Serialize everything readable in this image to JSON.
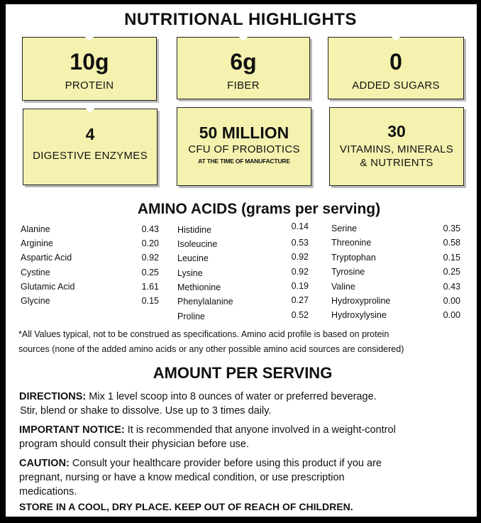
{
  "title": "NUTRITIONAL HIGHLIGHTS",
  "highlights": [
    {
      "value": "10g",
      "label": "PROTEIN"
    },
    {
      "value": "6g",
      "label": "FIBER"
    },
    {
      "value": "0",
      "label": "ADDED SUGARS"
    },
    {
      "value": "4",
      "label": "DIGESTIVE ENZYMES"
    },
    {
      "value": "50 MILLION",
      "label": "CFU OF PROBIOTICS",
      "note": "AT THE TIME OF MANUFACTURE"
    },
    {
      "value": "30",
      "label": "VITAMINS, MINERALS",
      "label2": "& NUTRIENTS"
    }
  ],
  "amino_title": "AMINO ACIDS (grams per serving)",
  "amino_col1": [
    {
      "name": "Alanine",
      "value": "0.43"
    },
    {
      "name": "Arginine",
      "value": "0.20"
    },
    {
      "name": "Aspartic Acid",
      "value": "0.92"
    },
    {
      "name": "Cystine",
      "value": "0.25"
    },
    {
      "name": "Glutamic Acid",
      "value": "1.61"
    },
    {
      "name": "Glycine",
      "value": "0.15"
    }
  ],
  "amino_col2": [
    {
      "name": "Histidine",
      "value": "0.14"
    },
    {
      "name": "Isoleucine",
      "value": "0.53"
    },
    {
      "name": "Leucine",
      "value": "0.92"
    },
    {
      "name": "Lysine",
      "value": "0.92"
    },
    {
      "name": "Methionine",
      "value": "0.19"
    },
    {
      "name": "Phenylalanine",
      "value": "0.27"
    },
    {
      "name": "Proline",
      "value": "0.52"
    }
  ],
  "amino_col3": [
    {
      "name": "Serine",
      "value": "0.35"
    },
    {
      "name": "Threonine",
      "value": "0.58"
    },
    {
      "name": "Tryptophan",
      "value": "0.15"
    },
    {
      "name": "Tyrosine",
      "value": "0.25"
    },
    {
      "name": "Valine",
      "value": "0.43"
    },
    {
      "name": "Hydroxyproline",
      "value": "0.00"
    },
    {
      "name": "Hydroxylysine",
      "value": "0.00"
    }
  ],
  "footnote_line1": "*All Values typical, not to be construed as specifications. Amino acid profile is based  on protein",
  "footnote_line2": "sources (none of the added amino acids or any other possible amino  acid sources are considered)",
  "serving_title": "AMOUNT PER SERVING",
  "directions_label": "DIRECTIONS:",
  "directions_text": " Mix 1 level scoop into 8 ounces of water or preferred beverage.",
  "directions_text2": "Stir, blend or shake to dissolve. Use up to 3 times daily.",
  "notice_label": "IMPORTANT NOTICE:",
  "notice_text": " It is recommended that anyone involved in a weight-control",
  "notice_text2": "program should consult  their physician before use.",
  "caution_label": "CAUTION:",
  "caution_text": " Consult your healthcare provider before using this product if you are",
  "caution_text2": "pregnant, nursing or have a know medical condition, or use prescription",
  "caution_text3": "medications.",
  "storage": "STORE IN A COOL, DRY PLACE.  KEEP OUT OF REACH OF CHILDREN."
}
